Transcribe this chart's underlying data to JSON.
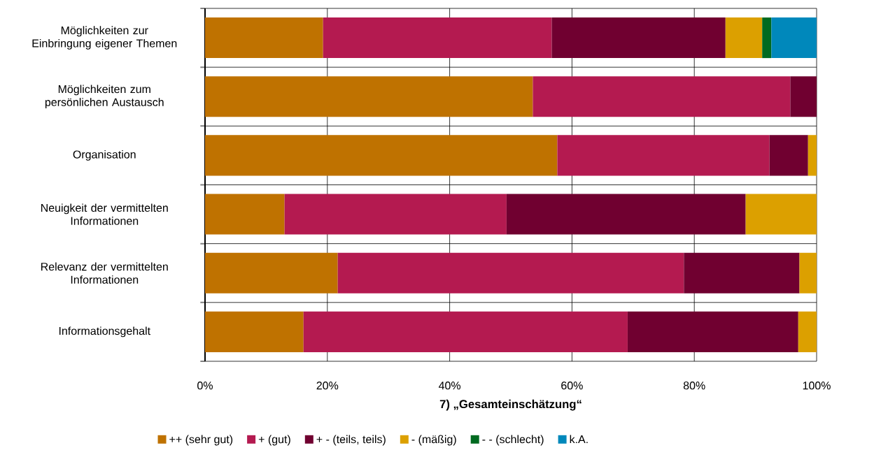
{
  "chart_data": {
    "type": "bar",
    "orientation": "horizontal",
    "stacked": true,
    "xlabel": "7) „Gesamteinschätzung“",
    "categories": [
      "Möglichkeiten zur Einbringung eigener Themen",
      "Möglichkeiten zum persönlichen Austausch",
      "Organisation",
      "Neuigkeit der vermittelten Informationen",
      "Relevanz der vermittelten Informationen",
      "Informationsgehalt"
    ],
    "series": [
      {
        "name": "++ (sehr gut)",
        "color": "#bf7200",
        "values": [
          19.3,
          53.6,
          57.6,
          13.0,
          21.7,
          16.1
        ]
      },
      {
        "name": "+ (gut)",
        "color": "#b41a50",
        "values": [
          37.4,
          42.1,
          34.7,
          36.3,
          56.6,
          53.0
        ]
      },
      {
        "name": "+ - (teils, teils)",
        "color": "#700030",
        "values": [
          28.4,
          4.3,
          6.3,
          39.1,
          18.9,
          27.9
        ]
      },
      {
        "name": "- (mäßig)",
        "color": "#dca000",
        "values": [
          6.0,
          null,
          1.4,
          11.6,
          2.8,
          3.0
        ]
      },
      {
        "name": "- - (schlecht)",
        "color": "#006a20",
        "values": [
          1.5,
          null,
          null,
          null,
          null,
          null
        ]
      },
      {
        "name": "k.A.",
        "color": "#0088bb",
        "values": [
          7.4,
          null,
          null,
          null,
          null,
          null
        ]
      }
    ],
    "xlim": [
      0,
      100
    ],
    "xticks": [
      {
        "value": 0,
        "label": "0%"
      },
      {
        "value": 20,
        "label": "20%"
      },
      {
        "value": 40,
        "label": "40%"
      },
      {
        "value": 60,
        "label": "60%"
      },
      {
        "value": 80,
        "label": "80%"
      },
      {
        "value": 100,
        "label": "100%"
      }
    ],
    "grid": true,
    "legend": "bottom"
  }
}
